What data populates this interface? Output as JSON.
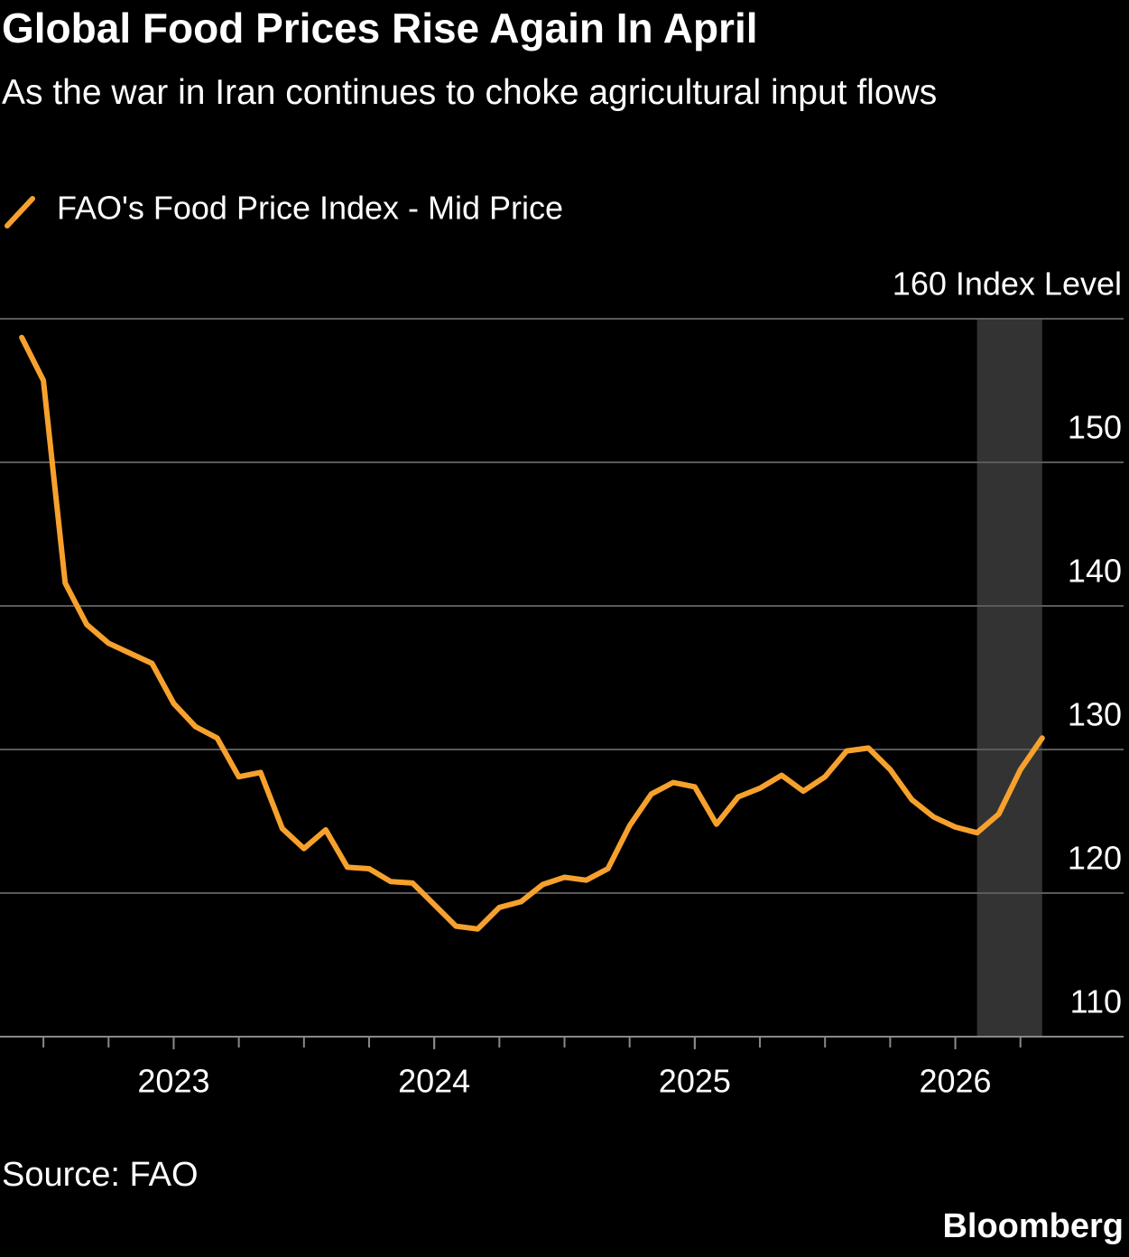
{
  "chart_data": {
    "type": "line",
    "title": "Global Food Prices Rise Again In April",
    "subtitle": "As the war in Iran continues to choke agricultural input flows",
    "x": [
      "2022-05",
      "2022-06",
      "2022-07",
      "2022-08",
      "2022-09",
      "2022-10",
      "2022-11",
      "2022-12",
      "2023-01",
      "2023-02",
      "2023-03",
      "2023-04",
      "2023-05",
      "2023-06",
      "2023-07",
      "2023-08",
      "2023-09",
      "2023-10",
      "2023-11",
      "2023-12",
      "2024-01",
      "2024-02",
      "2024-03",
      "2024-04",
      "2024-05",
      "2024-06",
      "2024-07",
      "2024-08",
      "2024-09",
      "2024-10",
      "2024-11",
      "2024-12",
      "2025-01",
      "2025-02",
      "2025-03",
      "2025-04",
      "2025-05",
      "2025-06",
      "2025-07",
      "2025-08",
      "2025-09",
      "2025-10",
      "2025-11",
      "2025-12",
      "2026-01",
      "2026-02",
      "2026-03",
      "2026-04"
    ],
    "series": [
      {
        "name": "FAO's Food Price Index - Mid Price",
        "color": "#f7a12d",
        "values": [
          158.7,
          155.7,
          141.6,
          138.7,
          137.4,
          136.7,
          136.0,
          133.2,
          131.6,
          130.8,
          128.1,
          128.4,
          124.5,
          123.1,
          124.4,
          121.8,
          121.7,
          120.8,
          120.7,
          119.2,
          117.7,
          117.5,
          119.0,
          119.4,
          120.6,
          121.1,
          120.9,
          121.7,
          124.7,
          126.9,
          127.7,
          127.4,
          124.8,
          126.7,
          127.3,
          128.2,
          127.1,
          128.1,
          129.9,
          130.1,
          128.6,
          126.5,
          125.3,
          124.6,
          124.2,
          125.5,
          128.6,
          130.8
        ]
      }
    ],
    "xlim": [
      "2022-04",
      "2026-08"
    ],
    "xticks": [
      "2023",
      "2024",
      "2025",
      "2026"
    ],
    "xminor_ticks": [
      "2022-06",
      "2022-09",
      "2022-12",
      "2023-03",
      "2023-06",
      "2023-09",
      "2023-12",
      "2024-03",
      "2024-06",
      "2024-09",
      "2024-12",
      "2025-03",
      "2025-06",
      "2025-09",
      "2025-12",
      "2026-03"
    ],
    "ylim": [
      110,
      160
    ],
    "yticks": [
      110,
      120,
      130,
      140,
      150,
      {
        "value": 160,
        "label": "160 Index Level"
      }
    ],
    "grid": true,
    "shaded_range": [
      "2026-01",
      "2026-04"
    ],
    "source": "Source: FAO",
    "logo": "Bloomberg"
  }
}
